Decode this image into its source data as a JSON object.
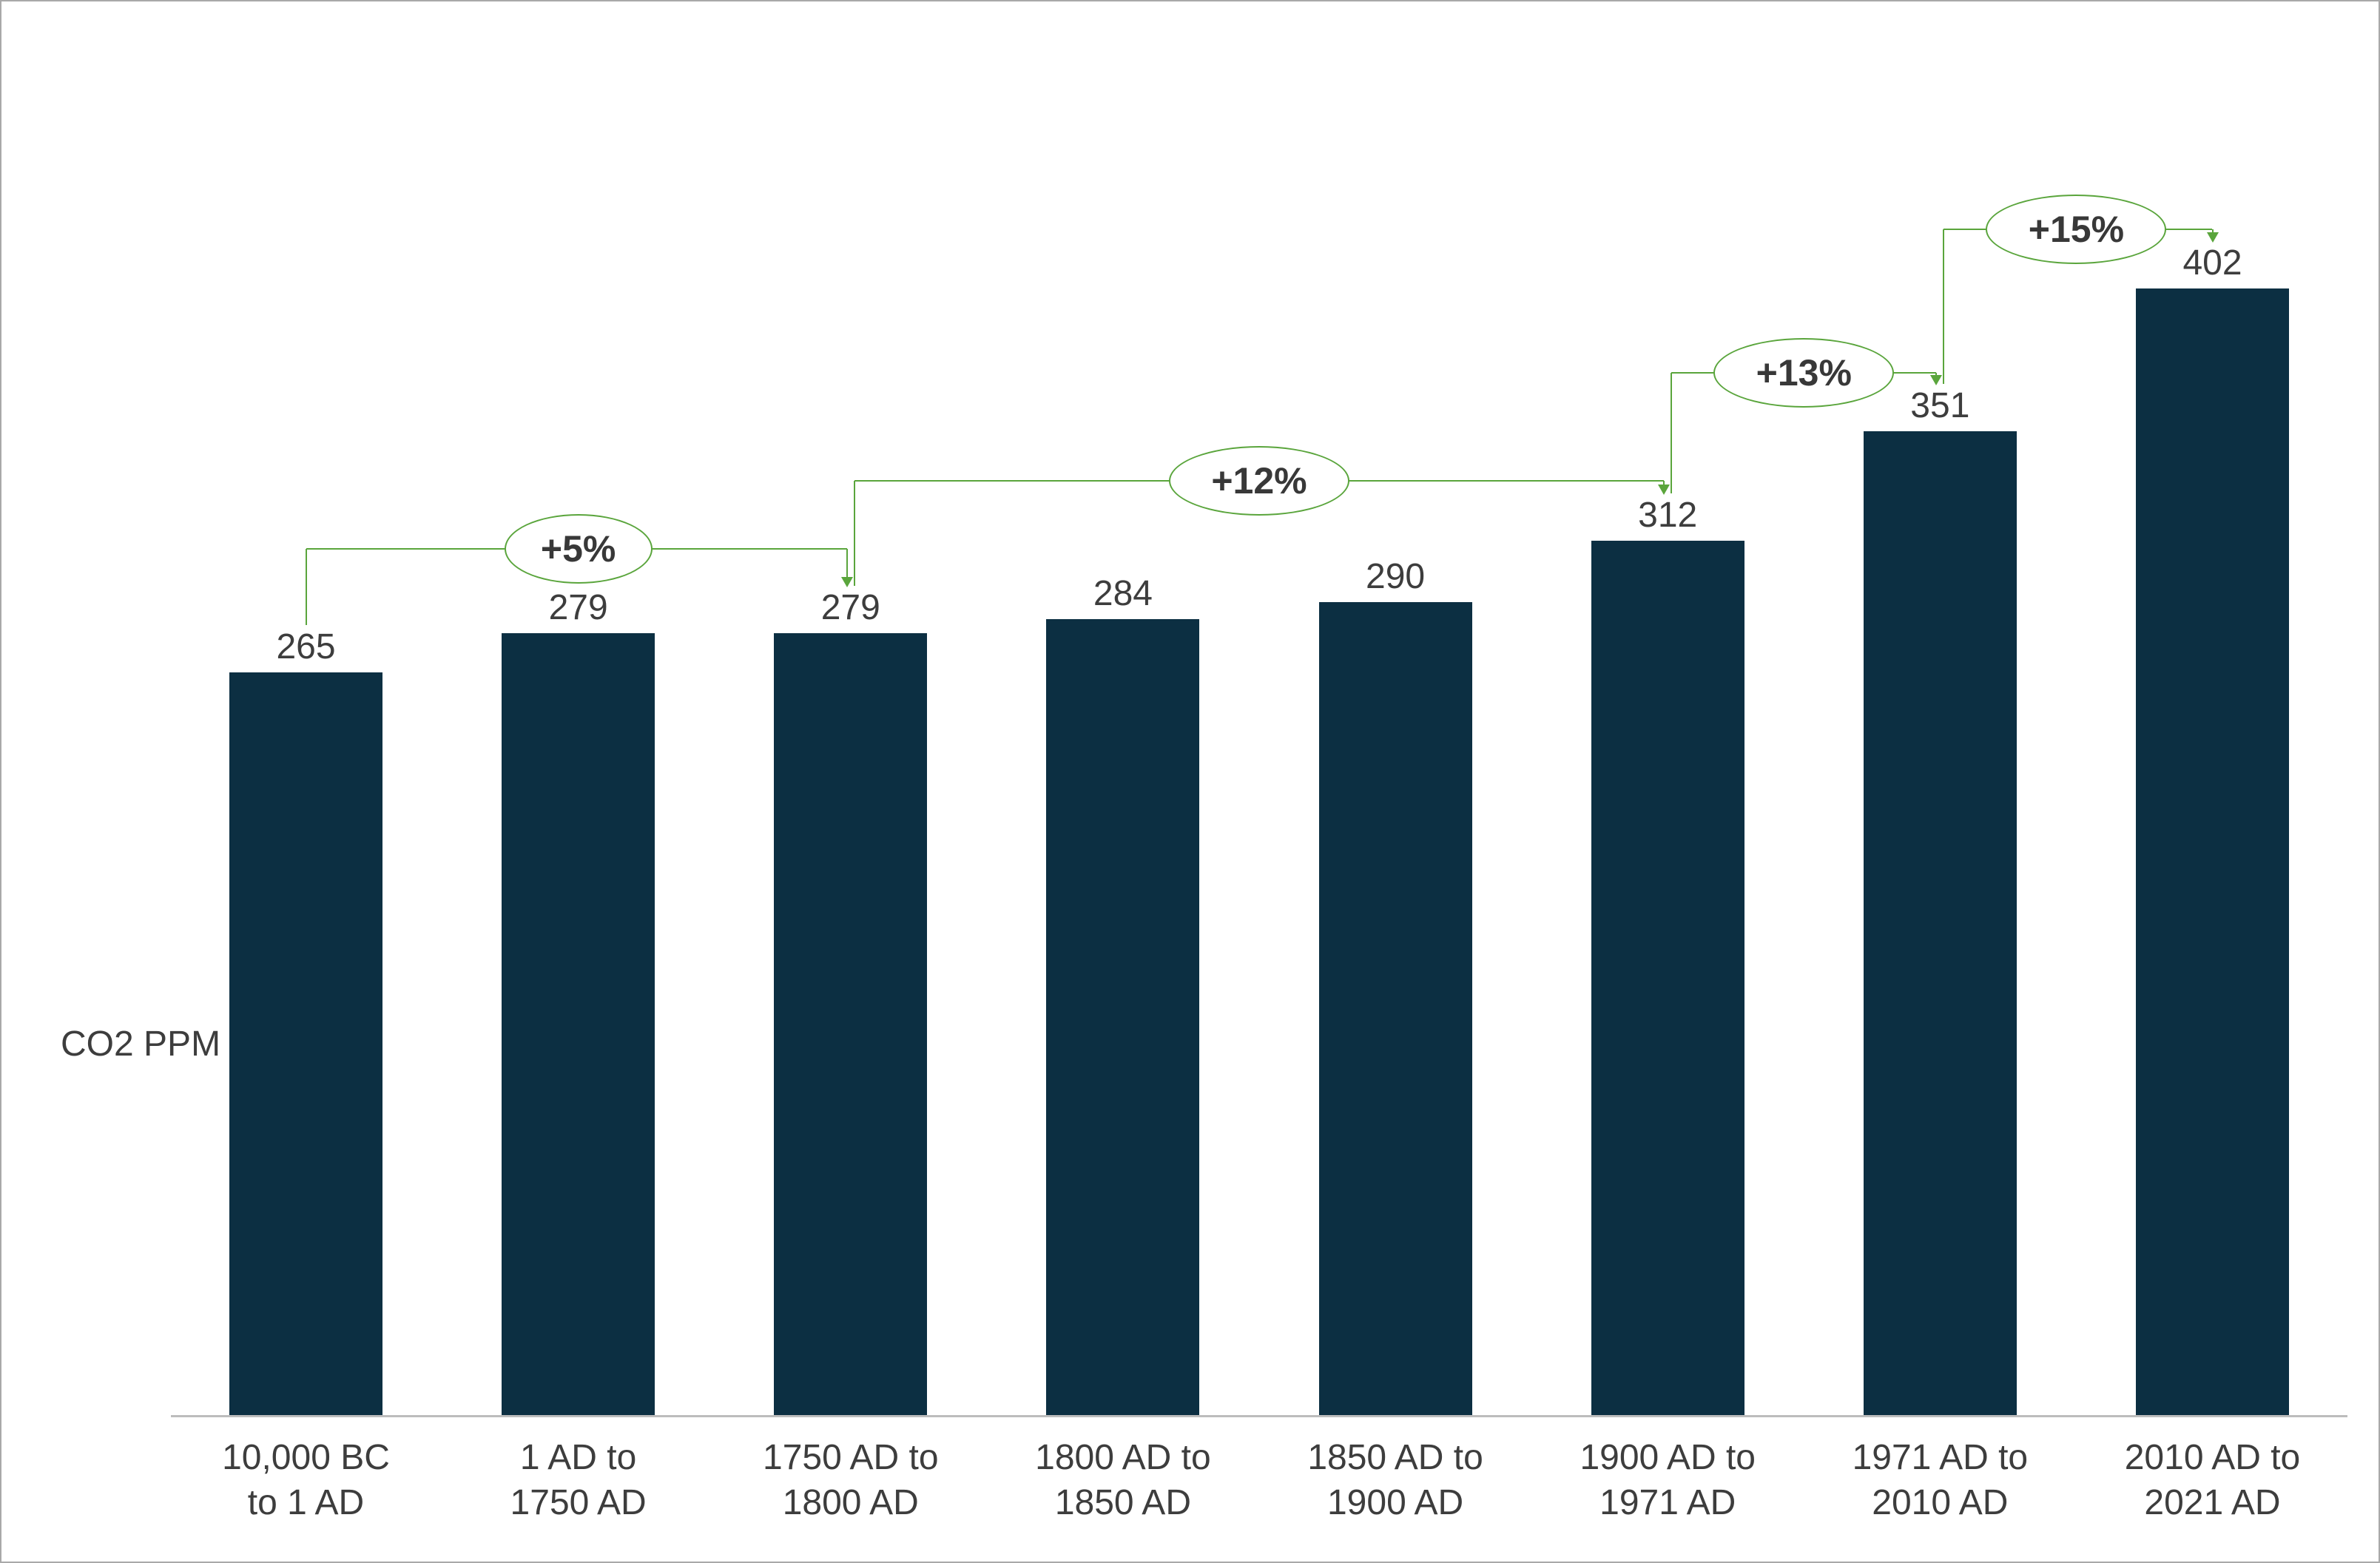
{
  "chart_data": {
    "type": "bar",
    "title": "",
    "xlabel": "",
    "ylabel": "CO2 PPM",
    "categories": [
      [
        "10,000 BC",
        "to 1 AD"
      ],
      [
        "1 AD to",
        "1750 AD"
      ],
      [
        "1750 AD to",
        "1800 AD"
      ],
      [
        "1800 AD to",
        "1850 AD"
      ],
      [
        "1850 AD to",
        "1900 AD"
      ],
      [
        "1900 AD to",
        "1971 AD"
      ],
      [
        "1971 AD to",
        "2010 AD"
      ],
      [
        "2010 AD to",
        "2021 AD"
      ]
    ],
    "values": [
      265,
      279,
      279,
      284,
      290,
      312,
      351,
      402
    ],
    "annotations": [
      {
        "label": "+5%",
        "from": 0,
        "to": 2
      },
      {
        "label": "+12%",
        "from": 2,
        "to": 5
      },
      {
        "label": "+13%",
        "from": 5,
        "to": 6
      },
      {
        "label": "+15%",
        "from": 6,
        "to": 7
      }
    ],
    "ylim": [
      0,
      420
    ],
    "grid": false,
    "legend": null,
    "colors": {
      "bar": "#0c2f42",
      "annotation_green": "#5aa53c",
      "text": "#3d3d3d",
      "axis": "#bdbdbd"
    }
  }
}
